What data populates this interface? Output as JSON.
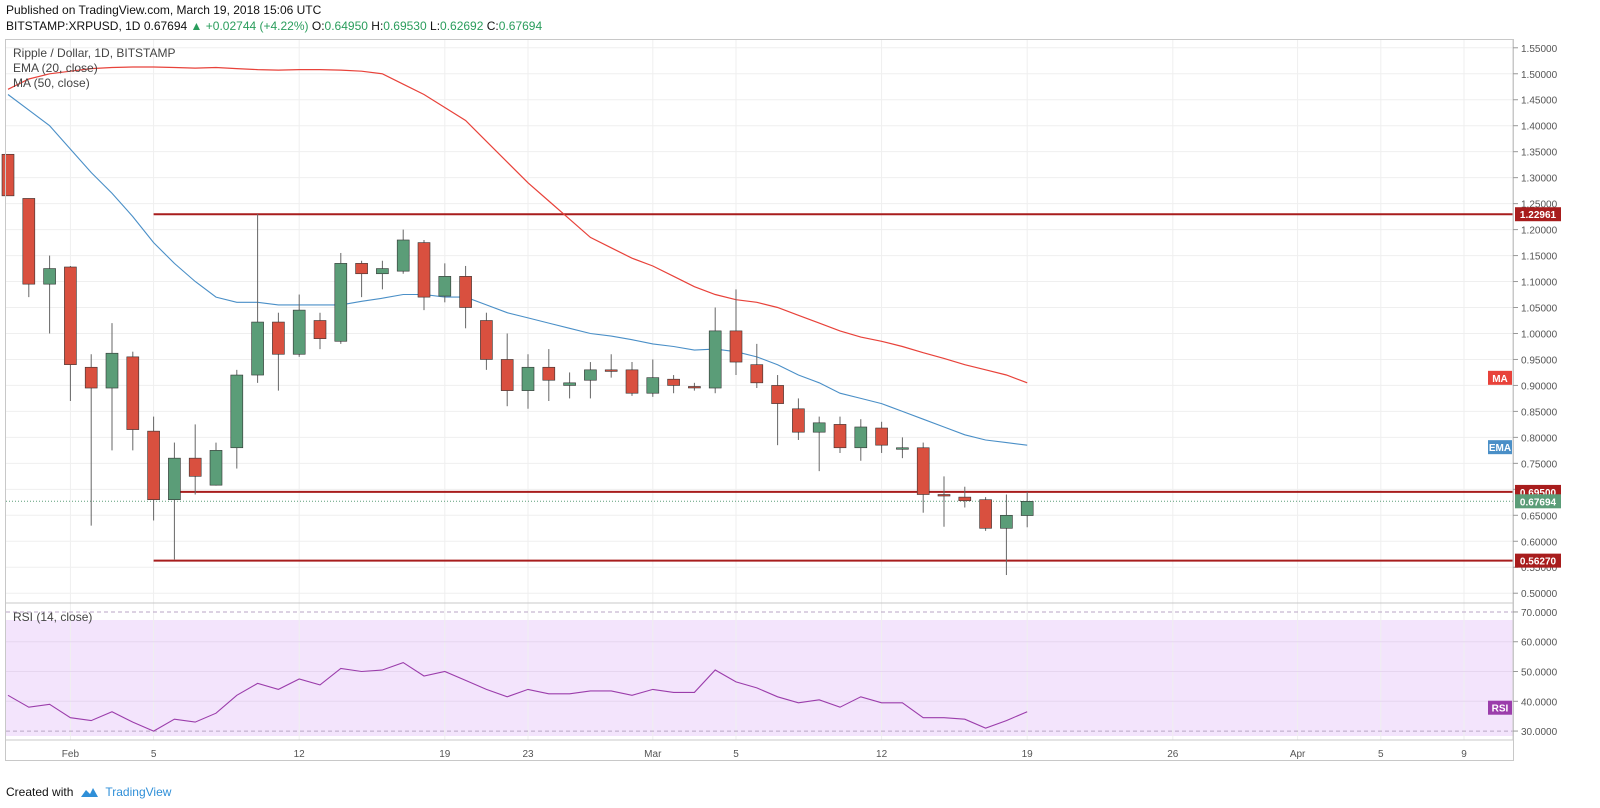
{
  "header": {
    "published": "Published on TradingView.com, March 19, 2018 15:06 UTC",
    "symbol": "BITSTAMP:XRPUSD, 1D",
    "last": "0.67694",
    "change": "+0.02744 (+4.22%)",
    "open_label": "O:",
    "open": "0.64950",
    "high_label": "H:",
    "high": "0.69530",
    "low_label": "L:",
    "low": "0.62692",
    "close_label": "C:",
    "close": "0.67694"
  },
  "footer": {
    "created": "Created with",
    "brand": "TradingView"
  },
  "colors": {
    "up": "#5b9d78",
    "down": "#d9503f",
    "ema": "#4a8fc7",
    "ma": "#e8423a",
    "rsi": "#9b3dab",
    "level": "#a81d1d",
    "rsi_bg": "#f3e4fc"
  },
  "chart_data": {
    "type": "candlestick",
    "legend": [
      "Ripple / Dollar, 1D, BITSTAMP",
      "EMA (20, close)",
      "MA (50, close)"
    ],
    "ylim": [
      0.485,
      1.565
    ],
    "y_ticks": [
      "1.55000",
      "1.50000",
      "1.45000",
      "1.40000",
      "1.35000",
      "1.30000",
      "1.25000",
      "1.20000",
      "1.15000",
      "1.10000",
      "1.05000",
      "1.00000",
      "0.95000",
      "0.90000",
      "0.85000",
      "0.80000",
      "0.75000",
      "0.70000",
      "0.65000",
      "0.60000",
      "0.55000",
      "0.50000"
    ],
    "x_ticks": [
      {
        "label": "Feb",
        "day": 3
      },
      {
        "label": "5",
        "day": 7
      },
      {
        "label": "12",
        "day": 14
      },
      {
        "label": "19",
        "day": 21
      },
      {
        "label": "23",
        "day": 25
      },
      {
        "label": "Mar",
        "day": 31
      },
      {
        "label": "5",
        "day": 35
      },
      {
        "label": "12",
        "day": 42
      },
      {
        "label": "19",
        "day": 49
      },
      {
        "label": "26",
        "day": 56
      },
      {
        "label": "Apr",
        "day": 62
      },
      {
        "label": "5",
        "day": 66
      },
      {
        "label": "9",
        "day": 70
      }
    ],
    "candles": [
      {
        "day": 0,
        "o": 1.345,
        "h": 1.345,
        "l": 1.265,
        "c": 1.265
      },
      {
        "day": 1,
        "o": 1.26,
        "h": 1.26,
        "l": 1.07,
        "c": 1.095
      },
      {
        "day": 2,
        "o": 1.095,
        "h": 1.15,
        "l": 1.0,
        "c": 1.125
      },
      {
        "day": 3,
        "o": 1.128,
        "h": 1.13,
        "l": 0.87,
        "c": 0.94
      },
      {
        "day": 4,
        "o": 0.935,
        "h": 0.96,
        "l": 0.63,
        "c": 0.895
      },
      {
        "day": 5,
        "o": 0.895,
        "h": 1.02,
        "l": 0.775,
        "c": 0.962
      },
      {
        "day": 6,
        "o": 0.955,
        "h": 0.965,
        "l": 0.775,
        "c": 0.815
      },
      {
        "day": 7,
        "o": 0.812,
        "h": 0.84,
        "l": 0.64,
        "c": 0.68
      },
      {
        "day": 8,
        "o": 0.68,
        "h": 0.79,
        "l": 0.565,
        "c": 0.76
      },
      {
        "day": 9,
        "o": 0.76,
        "h": 0.825,
        "l": 0.69,
        "c": 0.725
      },
      {
        "day": 10,
        "o": 0.708,
        "h": 0.79,
        "l": 0.707,
        "c": 0.775
      },
      {
        "day": 11,
        "o": 0.78,
        "h": 0.93,
        "l": 0.74,
        "c": 0.92
      },
      {
        "day": 12,
        "o": 0.92,
        "h": 1.23,
        "l": 0.905,
        "c": 1.022
      },
      {
        "day": 13,
        "o": 1.022,
        "h": 1.04,
        "l": 0.89,
        "c": 0.96
      },
      {
        "day": 14,
        "o": 0.96,
        "h": 1.075,
        "l": 0.955,
        "c": 1.045
      },
      {
        "day": 15,
        "o": 1.025,
        "h": 1.04,
        "l": 0.97,
        "c": 0.99
      },
      {
        "day": 16,
        "o": 0.985,
        "h": 1.155,
        "l": 0.98,
        "c": 1.135
      },
      {
        "day": 17,
        "o": 1.135,
        "h": 1.14,
        "l": 1.07,
        "c": 1.115
      },
      {
        "day": 18,
        "o": 1.115,
        "h": 1.14,
        "l": 1.085,
        "c": 1.125
      },
      {
        "day": 19,
        "o": 1.12,
        "h": 1.2,
        "l": 1.115,
        "c": 1.18
      },
      {
        "day": 20,
        "o": 1.175,
        "h": 1.18,
        "l": 1.045,
        "c": 1.07
      },
      {
        "day": 21,
        "o": 1.072,
        "h": 1.135,
        "l": 1.06,
        "c": 1.11
      },
      {
        "day": 22,
        "o": 1.11,
        "h": 1.13,
        "l": 1.01,
        "c": 1.05
      },
      {
        "day": 23,
        "o": 1.025,
        "h": 1.04,
        "l": 0.93,
        "c": 0.95
      },
      {
        "day": 24,
        "o": 0.95,
        "h": 1.0,
        "l": 0.86,
        "c": 0.89
      },
      {
        "day": 25,
        "o": 0.89,
        "h": 0.96,
        "l": 0.855,
        "c": 0.935
      },
      {
        "day": 26,
        "o": 0.935,
        "h": 0.97,
        "l": 0.87,
        "c": 0.91
      },
      {
        "day": 27,
        "o": 0.9,
        "h": 0.925,
        "l": 0.875,
        "c": 0.905
      },
      {
        "day": 28,
        "o": 0.91,
        "h": 0.945,
        "l": 0.875,
        "c": 0.93
      },
      {
        "day": 29,
        "o": 0.93,
        "h": 0.96,
        "l": 0.915,
        "c": 0.927
      },
      {
        "day": 30,
        "o": 0.93,
        "h": 0.945,
        "l": 0.88,
        "c": 0.885
      },
      {
        "day": 31,
        "o": 0.885,
        "h": 0.95,
        "l": 0.878,
        "c": 0.915
      },
      {
        "day": 32,
        "o": 0.912,
        "h": 0.92,
        "l": 0.885,
        "c": 0.9
      },
      {
        "day": 33,
        "o": 0.898,
        "h": 0.905,
        "l": 0.89,
        "c": 0.896
      },
      {
        "day": 34,
        "o": 0.895,
        "h": 1.05,
        "l": 0.885,
        "c": 1.005
      },
      {
        "day": 35,
        "o": 1.005,
        "h": 1.085,
        "l": 0.92,
        "c": 0.945
      },
      {
        "day": 36,
        "o": 0.94,
        "h": 0.98,
        "l": 0.895,
        "c": 0.905
      },
      {
        "day": 37,
        "o": 0.9,
        "h": 0.92,
        "l": 0.785,
        "c": 0.865
      },
      {
        "day": 38,
        "o": 0.855,
        "h": 0.875,
        "l": 0.795,
        "c": 0.81
      },
      {
        "day": 39,
        "o": 0.81,
        "h": 0.84,
        "l": 0.735,
        "c": 0.828
      },
      {
        "day": 40,
        "o": 0.825,
        "h": 0.84,
        "l": 0.77,
        "c": 0.78
      },
      {
        "day": 41,
        "o": 0.78,
        "h": 0.835,
        "l": 0.755,
        "c": 0.82
      },
      {
        "day": 42,
        "o": 0.818,
        "h": 0.83,
        "l": 0.77,
        "c": 0.785
      },
      {
        "day": 43,
        "o": 0.78,
        "h": 0.8,
        "l": 0.76,
        "c": 0.78
      },
      {
        "day": 44,
        "o": 0.78,
        "h": 0.79,
        "l": 0.655,
        "c": 0.69
      },
      {
        "day": 45,
        "o": 0.69,
        "h": 0.725,
        "l": 0.628,
        "c": 0.688
      },
      {
        "day": 46,
        "o": 0.685,
        "h": 0.705,
        "l": 0.665,
        "c": 0.678
      },
      {
        "day": 47,
        "o": 0.68,
        "h": 0.685,
        "l": 0.62,
        "c": 0.625
      },
      {
        "day": 48,
        "o": 0.625,
        "h": 0.69,
        "l": 0.535,
        "c": 0.65
      },
      {
        "day": 49,
        "o": 0.6495,
        "h": 0.6953,
        "l": 0.62692,
        "c": 0.67694
      }
    ],
    "ema": [
      {
        "day": 0,
        "v": 1.46
      },
      {
        "day": 1,
        "v": 1.43
      },
      {
        "day": 2,
        "v": 1.4
      },
      {
        "day": 3,
        "v": 1.355
      },
      {
        "day": 4,
        "v": 1.31
      },
      {
        "day": 5,
        "v": 1.27
      },
      {
        "day": 6,
        "v": 1.225
      },
      {
        "day": 7,
        "v": 1.175
      },
      {
        "day": 8,
        "v": 1.135
      },
      {
        "day": 9,
        "v": 1.1
      },
      {
        "day": 10,
        "v": 1.07
      },
      {
        "day": 11,
        "v": 1.06
      },
      {
        "day": 12,
        "v": 1.06
      },
      {
        "day": 13,
        "v": 1.055
      },
      {
        "day": 14,
        "v": 1.055
      },
      {
        "day": 15,
        "v": 1.055
      },
      {
        "day": 16,
        "v": 1.055
      },
      {
        "day": 17,
        "v": 1.062
      },
      {
        "day": 18,
        "v": 1.068
      },
      {
        "day": 19,
        "v": 1.075
      },
      {
        "day": 20,
        "v": 1.075
      },
      {
        "day": 21,
        "v": 1.07
      },
      {
        "day": 22,
        "v": 1.07
      },
      {
        "day": 23,
        "v": 1.055
      },
      {
        "day": 24,
        "v": 1.04
      },
      {
        "day": 25,
        "v": 1.03
      },
      {
        "day": 26,
        "v": 1.02
      },
      {
        "day": 27,
        "v": 1.01
      },
      {
        "day": 28,
        "v": 1.0
      },
      {
        "day": 29,
        "v": 0.995
      },
      {
        "day": 30,
        "v": 0.988
      },
      {
        "day": 31,
        "v": 0.98
      },
      {
        "day": 32,
        "v": 0.975
      },
      {
        "day": 33,
        "v": 0.968
      },
      {
        "day": 34,
        "v": 0.97
      },
      {
        "day": 35,
        "v": 0.965
      },
      {
        "day": 36,
        "v": 0.955
      },
      {
        "day": 37,
        "v": 0.94
      },
      {
        "day": 38,
        "v": 0.92
      },
      {
        "day": 39,
        "v": 0.905
      },
      {
        "day": 40,
        "v": 0.885
      },
      {
        "day": 41,
        "v": 0.875
      },
      {
        "day": 42,
        "v": 0.865
      },
      {
        "day": 43,
        "v": 0.85
      },
      {
        "day": 44,
        "v": 0.835
      },
      {
        "day": 45,
        "v": 0.82
      },
      {
        "day": 46,
        "v": 0.805
      },
      {
        "day": 47,
        "v": 0.795
      },
      {
        "day": 48,
        "v": 0.79
      },
      {
        "day": 49,
        "v": 0.785
      }
    ],
    "ma": [
      {
        "day": 0,
        "v": 1.47
      },
      {
        "day": 1,
        "v": 1.49
      },
      {
        "day": 2,
        "v": 1.5
      },
      {
        "day": 3,
        "v": 1.505
      },
      {
        "day": 4,
        "v": 1.51
      },
      {
        "day": 5,
        "v": 1.512
      },
      {
        "day": 6,
        "v": 1.513
      },
      {
        "day": 7,
        "v": 1.513
      },
      {
        "day": 8,
        "v": 1.512
      },
      {
        "day": 9,
        "v": 1.511
      },
      {
        "day": 10,
        "v": 1.512
      },
      {
        "day": 11,
        "v": 1.51
      },
      {
        "day": 12,
        "v": 1.508
      },
      {
        "day": 13,
        "v": 1.507
      },
      {
        "day": 14,
        "v": 1.508
      },
      {
        "day": 15,
        "v": 1.508
      },
      {
        "day": 16,
        "v": 1.507
      },
      {
        "day": 17,
        "v": 1.505
      },
      {
        "day": 18,
        "v": 1.5
      },
      {
        "day": 19,
        "v": 1.48
      },
      {
        "day": 20,
        "v": 1.46
      },
      {
        "day": 21,
        "v": 1.435
      },
      {
        "day": 22,
        "v": 1.41
      },
      {
        "day": 23,
        "v": 1.37
      },
      {
        "day": 24,
        "v": 1.33
      },
      {
        "day": 25,
        "v": 1.29
      },
      {
        "day": 26,
        "v": 1.255
      },
      {
        "day": 27,
        "v": 1.22
      },
      {
        "day": 28,
        "v": 1.185
      },
      {
        "day": 29,
        "v": 1.165
      },
      {
        "day": 30,
        "v": 1.145
      },
      {
        "day": 31,
        "v": 1.13
      },
      {
        "day": 32,
        "v": 1.11
      },
      {
        "day": 33,
        "v": 1.09
      },
      {
        "day": 34,
        "v": 1.075
      },
      {
        "day": 35,
        "v": 1.065
      },
      {
        "day": 36,
        "v": 1.06
      },
      {
        "day": 37,
        "v": 1.05
      },
      {
        "day": 38,
        "v": 1.035
      },
      {
        "day": 39,
        "v": 1.02
      },
      {
        "day": 40,
        "v": 1.005
      },
      {
        "day": 41,
        "v": 0.993
      },
      {
        "day": 42,
        "v": 0.985
      },
      {
        "day": 43,
        "v": 0.975
      },
      {
        "day": 44,
        "v": 0.963
      },
      {
        "day": 45,
        "v": 0.952
      },
      {
        "day": 46,
        "v": 0.94
      },
      {
        "day": 47,
        "v": 0.93
      },
      {
        "day": 48,
        "v": 0.92
      },
      {
        "day": 49,
        "v": 0.905
      }
    ],
    "levels": [
      {
        "value": 1.22961,
        "label": "1.22961",
        "from_day": 7
      },
      {
        "value": 0.695,
        "label": "0.69500",
        "from_day": 8
      },
      {
        "value": 0.5627,
        "label": "0.56270",
        "from_day": 7
      }
    ],
    "last_price": {
      "value": 0.67694,
      "label": "0.67694"
    },
    "indicator_badges": {
      "ma": "MA",
      "ema": "EMA",
      "rsi": "RSI"
    },
    "rsi": {
      "legend": "RSI (14, close)",
      "ylim": [
        27,
        72
      ],
      "y_ticks": [
        "70.0000",
        "60.0000",
        "50.0000",
        "40.0000",
        "30.0000"
      ],
      "values": [
        {
          "day": 0,
          "v": 42
        },
        {
          "day": 1,
          "v": 38
        },
        {
          "day": 2,
          "v": 39
        },
        {
          "day": 3,
          "v": 34.5
        },
        {
          "day": 4,
          "v": 33.5
        },
        {
          "day": 5,
          "v": 36.5
        },
        {
          "day": 6,
          "v": 33
        },
        {
          "day": 7,
          "v": 30
        },
        {
          "day": 8,
          "v": 34
        },
        {
          "day": 9,
          "v": 33
        },
        {
          "day": 10,
          "v": 36
        },
        {
          "day": 11,
          "v": 42
        },
        {
          "day": 12,
          "v": 46
        },
        {
          "day": 13,
          "v": 44
        },
        {
          "day": 14,
          "v": 47.5
        },
        {
          "day": 15,
          "v": 45.5
        },
        {
          "day": 16,
          "v": 51
        },
        {
          "day": 17,
          "v": 50
        },
        {
          "day": 18,
          "v": 50.5
        },
        {
          "day": 19,
          "v": 53
        },
        {
          "day": 20,
          "v": 48.5
        },
        {
          "day": 21,
          "v": 50
        },
        {
          "day": 22,
          "v": 47
        },
        {
          "day": 23,
          "v": 44
        },
        {
          "day": 24,
          "v": 41.5
        },
        {
          "day": 25,
          "v": 44
        },
        {
          "day": 26,
          "v": 42.5
        },
        {
          "day": 27,
          "v": 42.5
        },
        {
          "day": 28,
          "v": 43.5
        },
        {
          "day": 29,
          "v": 43.5
        },
        {
          "day": 30,
          "v": 42
        },
        {
          "day": 31,
          "v": 44
        },
        {
          "day": 32,
          "v": 43
        },
        {
          "day": 33,
          "v": 43
        },
        {
          "day": 34,
          "v": 50.5
        },
        {
          "day": 35,
          "v": 46.5
        },
        {
          "day": 36,
          "v": 44.5
        },
        {
          "day": 37,
          "v": 41.5
        },
        {
          "day": 38,
          "v": 39.5
        },
        {
          "day": 39,
          "v": 40.5
        },
        {
          "day": 40,
          "v": 38
        },
        {
          "day": 41,
          "v": 41.5
        },
        {
          "day": 42,
          "v": 39.5
        },
        {
          "day": 43,
          "v": 39.5
        },
        {
          "day": 44,
          "v": 34.5
        },
        {
          "day": 45,
          "v": 34.5
        },
        {
          "day": 46,
          "v": 34
        },
        {
          "day": 47,
          "v": 31
        },
        {
          "day": 48,
          "v": 33.5
        },
        {
          "day": 49,
          "v": 36.5
        }
      ]
    }
  }
}
